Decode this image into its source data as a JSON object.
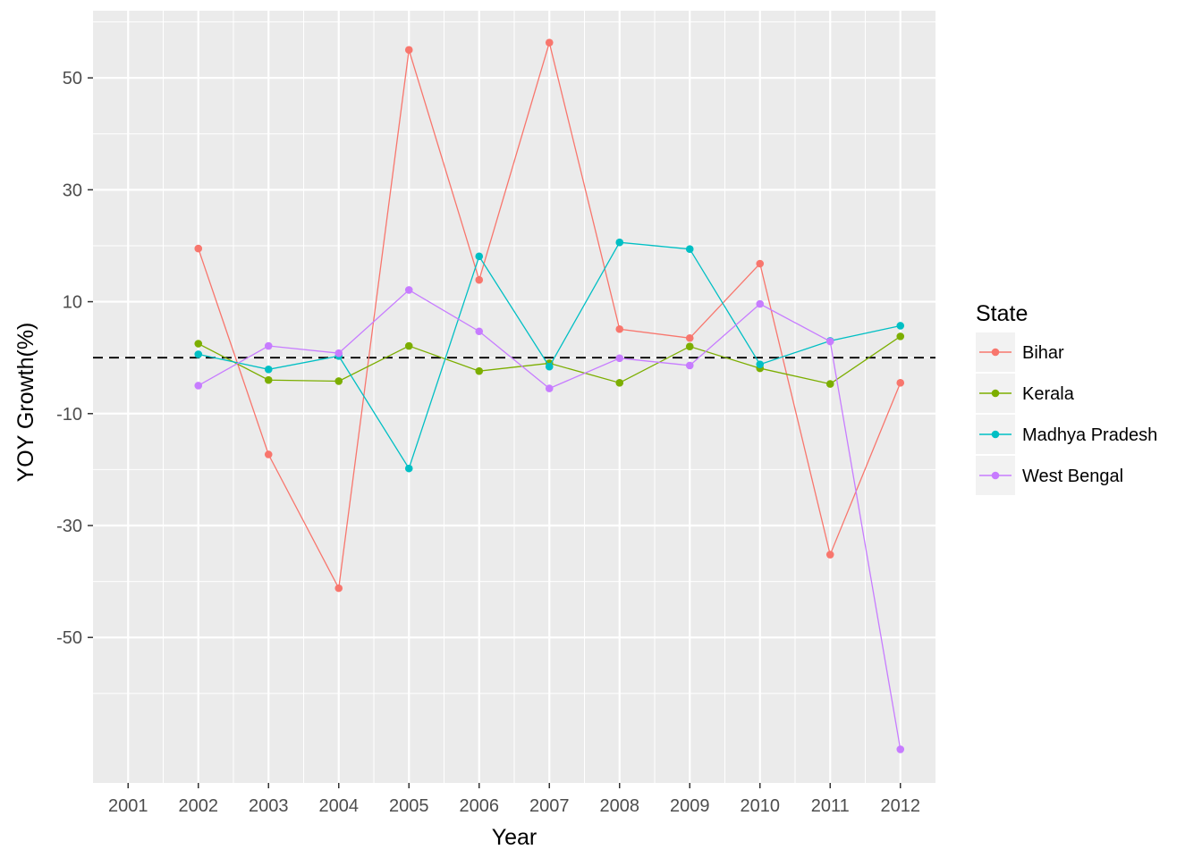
{
  "chart_data": {
    "type": "line",
    "xlabel": "Year",
    "ylabel": "YOY Growth(%)",
    "x": [
      "2001",
      "2002",
      "2003",
      "2004",
      "2005",
      "2006",
      "2007",
      "2008",
      "2009",
      "2010",
      "2011",
      "2012"
    ],
    "xlim": [
      2000.5,
      2012.5
    ],
    "ylim": [
      -76,
      62
    ],
    "y_ticks": [
      50,
      30,
      10,
      -10,
      -30,
      -50
    ],
    "y_tick_labels": [
      "50",
      "30",
      "10",
      "-10",
      "-30",
      "-50"
    ],
    "grid": true,
    "reference_line": {
      "y": 0,
      "style": "dashed"
    },
    "legend": {
      "title": "State",
      "position": "right"
    },
    "series": [
      {
        "name": "Bihar",
        "color": "#F8766D",
        "points": [
          [
            2002,
            19.5
          ],
          [
            2003,
            -17.3
          ],
          [
            2004,
            -41.2
          ],
          [
            2005,
            55.0
          ],
          [
            2006,
            13.9
          ],
          [
            2007,
            56.3
          ],
          [
            2008,
            5.1
          ],
          [
            2009,
            3.5
          ],
          [
            2010,
            16.8
          ],
          [
            2011,
            -35.2
          ],
          [
            2012,
            -4.5
          ]
        ]
      },
      {
        "name": "Kerala",
        "color": "#7CAE00",
        "points": [
          [
            2002,
            2.5
          ],
          [
            2003,
            -4.0
          ],
          [
            2004,
            -4.2
          ],
          [
            2005,
            2.1
          ],
          [
            2006,
            -2.4
          ],
          [
            2007,
            -1.0
          ],
          [
            2008,
            -4.5
          ],
          [
            2009,
            2.0
          ],
          [
            2010,
            -1.9
          ],
          [
            2011,
            -4.7
          ],
          [
            2012,
            3.8
          ]
        ]
      },
      {
        "name": "Madhya Pradesh",
        "color": "#00BFC4",
        "points": [
          [
            2002,
            0.6
          ],
          [
            2003,
            -2.1
          ],
          [
            2004,
            0.3
          ],
          [
            2005,
            -19.8
          ],
          [
            2006,
            18.1
          ],
          [
            2007,
            -1.6
          ],
          [
            2008,
            20.6
          ],
          [
            2009,
            19.4
          ],
          [
            2010,
            -1.2
          ],
          [
            2011,
            3.0
          ],
          [
            2012,
            5.7
          ]
        ]
      },
      {
        "name": "West Bengal",
        "color": "#C77CFF",
        "points": [
          [
            2002,
            -5.0
          ],
          [
            2003,
            2.1
          ],
          [
            2004,
            0.8
          ],
          [
            2005,
            12.1
          ],
          [
            2006,
            4.7
          ],
          [
            2007,
            -5.5
          ],
          [
            2008,
            -0.1
          ],
          [
            2009,
            -1.4
          ],
          [
            2010,
            9.6
          ],
          [
            2011,
            2.9
          ],
          [
            2012,
            -70.0
          ]
        ]
      }
    ]
  }
}
